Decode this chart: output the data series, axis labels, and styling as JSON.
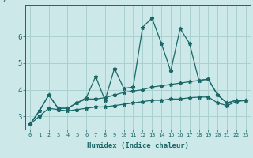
{
  "title": "",
  "xlabel": "Humidex (Indice chaleur)",
  "ylabel": "/",
  "x_values": [
    0,
    1,
    2,
    3,
    4,
    5,
    6,
    7,
    8,
    9,
    10,
    11,
    12,
    13,
    14,
    15,
    16,
    17,
    18,
    19,
    20,
    21,
    22,
    23
  ],
  "line1_zigzag": [
    2.7,
    3.2,
    3.8,
    3.3,
    3.3,
    3.5,
    3.7,
    4.5,
    3.6,
    4.8,
    4.05,
    4.1,
    6.35,
    6.7,
    5.75,
    4.7,
    6.3,
    5.75,
    4.35,
    null,
    null,
    null,
    null,
    null
  ],
  "line1_ext": [
    null,
    null,
    null,
    null,
    null,
    null,
    null,
    null,
    null,
    null,
    null,
    null,
    null,
    null,
    null,
    null,
    null,
    null,
    null,
    4.4,
    3.8,
    3.5,
    3.6,
    3.6
  ],
  "line2_smooth": [
    2.7,
    3.2,
    3.8,
    3.3,
    3.3,
    3.5,
    3.65,
    3.65,
    3.7,
    3.8,
    3.9,
    3.95,
    4.0,
    4.1,
    4.15,
    4.2,
    4.25,
    4.3,
    4.35,
    4.4,
    3.8,
    3.5,
    3.6,
    3.6
  ],
  "line3_smooth": [
    2.7,
    3.0,
    3.3,
    3.25,
    3.2,
    3.25,
    3.3,
    3.35,
    3.35,
    3.4,
    3.45,
    3.5,
    3.55,
    3.6,
    3.6,
    3.65,
    3.65,
    3.7,
    3.72,
    3.73,
    3.5,
    3.4,
    3.55,
    3.6
  ],
  "bg_color": "#cce8e8",
  "grid_color": "#aad0d0",
  "line_color": "#1a6868",
  "ylim": [
    2.5,
    7.2
  ],
  "yticks": [
    3,
    4,
    5,
    6
  ],
  "xticks": [
    0,
    1,
    2,
    3,
    4,
    5,
    6,
    7,
    8,
    9,
    10,
    11,
    12,
    13,
    14,
    15,
    16,
    17,
    18,
    19,
    20,
    21,
    22,
    23
  ],
  "markersize": 3.5,
  "lw": 0.9
}
